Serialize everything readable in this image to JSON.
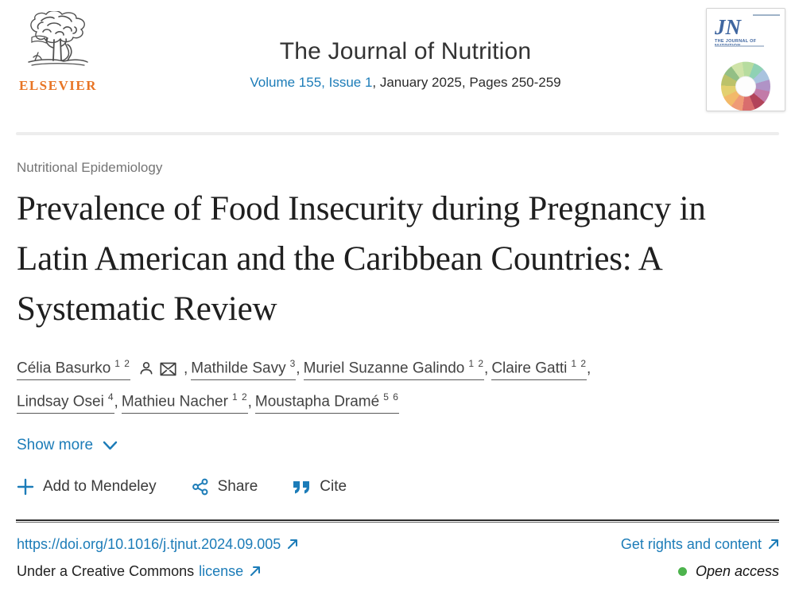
{
  "header": {
    "publisher": "ELSEVIER",
    "journal_title": "The Journal of Nutrition",
    "volume_link": "Volume 155, Issue 1",
    "issue_rest": ", January 2025, Pages 250-259",
    "cover": {
      "initials": "JN",
      "name": "THE JOURNAL OF NUTRITION"
    }
  },
  "article": {
    "section_label": "Nutritional Epidemiology",
    "title": "Prevalence of Food Insecurity during Pregnancy in Latin American and the Caribbean Countries: A Systematic Review",
    "authors": [
      {
        "name": "Célia Basurko",
        "sup": "1 2",
        "has_icons": true
      },
      {
        "name": "Mathilde Savy",
        "sup": "3"
      },
      {
        "name": "Muriel Suzanne Galindo",
        "sup": "1 2"
      },
      {
        "name": "Claire Gatti",
        "sup": "1 2"
      },
      {
        "name": "Lindsay Osei",
        "sup": "4"
      },
      {
        "name": "Mathieu Nacher",
        "sup": "1 2"
      },
      {
        "name": "Moustapha Dramé",
        "sup": "5 6"
      }
    ],
    "show_more": "Show more",
    "actions": {
      "mendeley": "Add to Mendeley",
      "share": "Share",
      "cite": "Cite"
    }
  },
  "footer": {
    "doi": "https://doi.org/10.1016/j.tjnut.2024.09.005",
    "rights": "Get rights and content",
    "license_prefix": "Under a Creative Commons",
    "license_link": "license",
    "open_access": "Open access"
  },
  "colors": {
    "link_blue": "#1c7cb8",
    "elsevier_orange": "#e87424",
    "open_access_green": "#4db34d",
    "title_text": "#1f1f1f",
    "cover_blue": "#3f66a0"
  }
}
